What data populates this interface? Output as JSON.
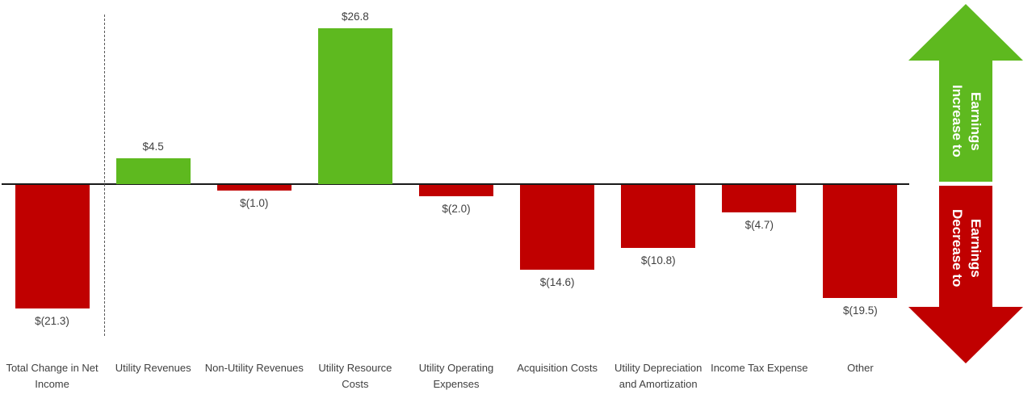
{
  "chart_data": {
    "type": "bar",
    "title": "",
    "categories": [
      "Total Change in Net Income",
      "Utility Revenues",
      "Non-Utility Revenues",
      "Utility Resource Costs",
      "Utility Operating Expenses",
      "Acquisition Costs",
      "Utility Depreciation and Amortization",
      "Income Tax Expense",
      "Other"
    ],
    "values": [
      -21.3,
      4.5,
      -1.0,
      26.8,
      -2.0,
      -14.6,
      -10.8,
      -4.7,
      -19.5
    ],
    "value_labels": [
      "$(21.3)",
      "$4.5",
      "$(1.0)",
      "$26.8",
      "$(2.0)",
      "$(14.6)",
      "$(10.8)",
      "$(4.7)",
      "$(19.5)"
    ],
    "ylim": [
      -25,
      30
    ],
    "grid": false,
    "legend_position": "right-arrows",
    "positive_color": "#5eb91f",
    "negative_color": "#c00000",
    "axis_color": "#1a1a1a",
    "baseline_separator_after_first_category": true
  },
  "annotations": {
    "increase_label": "Increase to Earnings",
    "decrease_label": "Decrease to Earnings"
  }
}
